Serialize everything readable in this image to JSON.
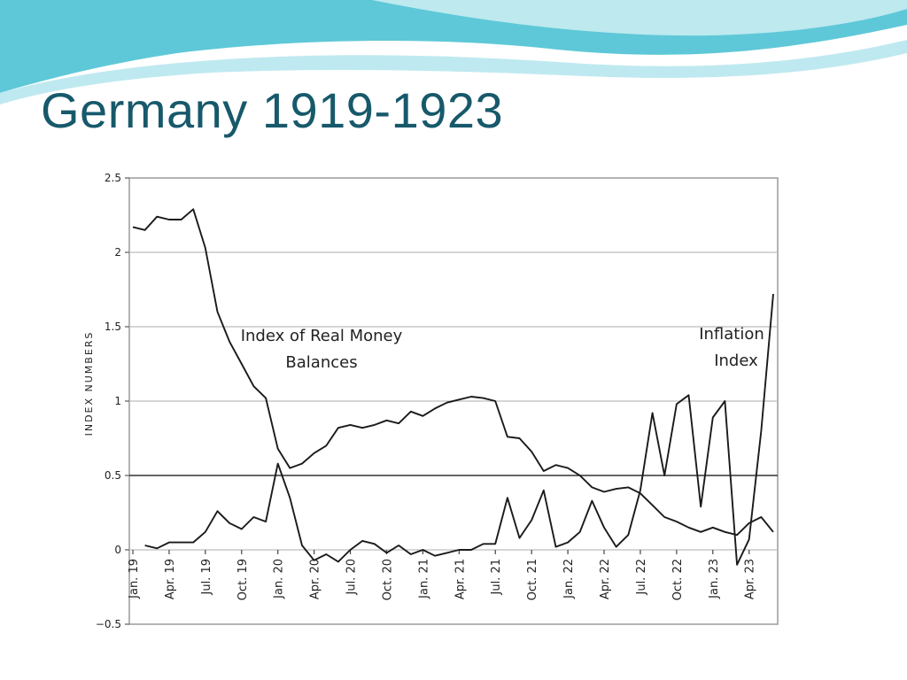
{
  "slide": {
    "title": "Germany 1919-1923",
    "colors": {
      "title": "#17596b",
      "wave_dark": "#5ec8d8",
      "wave_light": "#bfe9f0"
    }
  },
  "chart_data": {
    "type": "line",
    "title": "",
    "xlabel": "",
    "ylabel": "INDEX NUMBERS",
    "ylim": [
      -0.5,
      2.5
    ],
    "yticks": [
      -0.5,
      0,
      0.5,
      1,
      1.5,
      2,
      2.5
    ],
    "ytick_labels": [
      "−0.5",
      "0",
      "0.5",
      "1",
      "1.5",
      "2",
      "2.5"
    ],
    "grid": true,
    "reference_line": 0.5,
    "x_months": 54,
    "x_tick_months": [
      0,
      3,
      6,
      9,
      12,
      15,
      18,
      21,
      24,
      27,
      30,
      33,
      36,
      39,
      42,
      45,
      48,
      51
    ],
    "x_tick_labels": [
      "Jan. 19",
      "Apr. 19",
      "Jul. 19",
      "Oct. 19",
      "Jan. 20",
      "Apr. 20",
      "Jul. 20",
      "Oct. 20",
      "Jan. 21",
      "Apr. 21",
      "Jul. 21",
      "Oct. 21",
      "Jan. 22",
      "Apr. 22",
      "Jul. 22",
      "Oct. 22",
      "Jan. 23",
      "Apr. 23"
    ],
    "series": [
      {
        "name": "Index of Real Money Balances",
        "annotation": [
          "Index of Real Money",
          "Balances"
        ],
        "x": [
          0,
          1,
          2,
          3,
          4,
          5,
          6,
          7,
          8,
          9,
          10,
          11,
          12,
          13,
          14,
          15,
          16,
          17,
          18,
          19,
          20,
          21,
          22,
          23,
          24,
          25,
          26,
          27,
          28,
          29,
          30,
          31,
          32,
          33,
          34,
          35,
          36,
          37,
          38,
          39,
          40,
          41,
          42,
          43,
          44,
          45,
          46,
          47,
          48,
          49,
          50,
          51,
          52,
          53
        ],
        "values": [
          2.17,
          2.15,
          2.24,
          2.22,
          2.22,
          2.29,
          2.03,
          1.6,
          1.4,
          1.25,
          1.1,
          1.02,
          0.68,
          0.55,
          0.58,
          0.65,
          0.7,
          0.82,
          0.84,
          0.82,
          0.84,
          0.87,
          0.85,
          0.93,
          0.9,
          0.95,
          0.99,
          1.01,
          1.03,
          1.02,
          1.0,
          0.76,
          0.75,
          0.66,
          0.53,
          0.57,
          0.55,
          0.5,
          0.42,
          0.39,
          0.41,
          0.42,
          0.38,
          0.3,
          0.22,
          0.19,
          0.15,
          0.12,
          0.15,
          0.12,
          0.1,
          0.18,
          0.22,
          0.12
        ]
      },
      {
        "name": "Inflation Index",
        "annotation": [
          "Inflation",
          "Index"
        ],
        "x": [
          1,
          2,
          3,
          4,
          5,
          6,
          7,
          8,
          9,
          10,
          11,
          12,
          13,
          14,
          15,
          16,
          17,
          18,
          19,
          20,
          21,
          22,
          23,
          24,
          25,
          26,
          27,
          28,
          29,
          30,
          31,
          32,
          33,
          34,
          35,
          36,
          37,
          38,
          39,
          40,
          41,
          42,
          43,
          44,
          45,
          46,
          47,
          48,
          49,
          50,
          51,
          52,
          53
        ],
        "values": [
          0.03,
          0.01,
          0.05,
          0.05,
          0.05,
          0.12,
          0.26,
          0.18,
          0.14,
          0.22,
          0.19,
          0.58,
          0.35,
          0.03,
          -0.07,
          -0.03,
          -0.08,
          0.0,
          0.06,
          0.04,
          -0.02,
          0.03,
          -0.03,
          0.0,
          -0.04,
          -0.02,
          0.0,
          0.0,
          0.04,
          0.04,
          0.35,
          0.08,
          0.2,
          0.4,
          0.02,
          0.05,
          0.12,
          0.33,
          0.15,
          0.02,
          0.1,
          0.4,
          0.92,
          0.5,
          0.98,
          1.04,
          0.29,
          0.89,
          1.0,
          -0.1,
          0.07,
          0.8,
          1.72
        ]
      }
    ]
  }
}
